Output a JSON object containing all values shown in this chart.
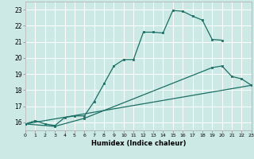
{
  "xlabel": "Humidex (Indice chaleur)",
  "background_color": "#cce9e6",
  "grid_color": "#ffffff",
  "line_color": "#1a6e63",
  "xlim": [
    0,
    23
  ],
  "ylim": [
    15.5,
    23.5
  ],
  "xticks": [
    0,
    1,
    2,
    3,
    4,
    5,
    6,
    7,
    8,
    9,
    10,
    11,
    12,
    13,
    14,
    15,
    16,
    17,
    18,
    19,
    20,
    21,
    22,
    23
  ],
  "yticks": [
    16,
    17,
    18,
    19,
    20,
    21,
    22,
    23
  ],
  "curve1_x": [
    0,
    1,
    2,
    3,
    4,
    5,
    6,
    7,
    8,
    9,
    10,
    11,
    12,
    13,
    14,
    15,
    16,
    17,
    18,
    19,
    20
  ],
  "curve1_y": [
    15.9,
    16.1,
    15.9,
    15.8,
    16.3,
    16.4,
    16.4,
    17.3,
    18.4,
    19.5,
    19.9,
    19.9,
    21.6,
    21.6,
    21.55,
    22.95,
    22.9,
    22.6,
    22.35,
    21.15,
    21.1
  ],
  "curve2_x": [
    0,
    3,
    6,
    19,
    20,
    21,
    22,
    23
  ],
  "curve2_y": [
    15.9,
    15.75,
    16.25,
    19.4,
    19.5,
    18.85,
    18.7,
    18.3
  ],
  "curve3_x": [
    0,
    23
  ],
  "curve3_y": [
    15.9,
    18.3
  ]
}
